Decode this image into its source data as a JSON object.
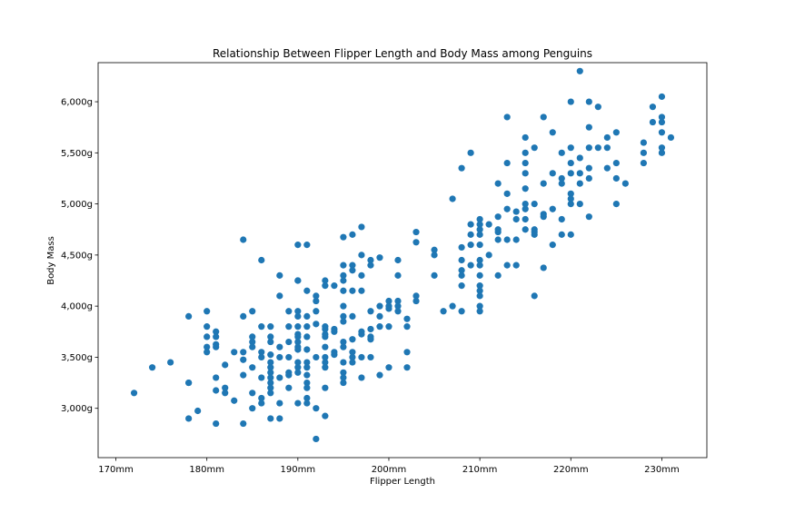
{
  "chart_data": {
    "type": "scatter",
    "title": "Relationship Between Flipper Length and Body Mass among Penguins",
    "xlabel": "Flipper Length",
    "ylabel": "Body Mass",
    "xlim": [
      168.05,
      234.95
    ],
    "ylim": [
      2517.5,
      6382.5
    ],
    "x_ticks": [
      170,
      180,
      190,
      200,
      210,
      220,
      230
    ],
    "x_tick_labels": [
      "170mm",
      "180mm",
      "190mm",
      "200mm",
      "210mm",
      "220mm",
      "230mm"
    ],
    "y_ticks": [
      3000,
      3500,
      4000,
      4500,
      5000,
      5500,
      6000
    ],
    "y_tick_labels": [
      "3,000g",
      "3,500g",
      "4,000g",
      "4,500g",
      "5,000g",
      "5,500g",
      "6,000g"
    ],
    "grid": false,
    "marker_color": "#1f77b4",
    "points": [
      [
        172,
        3150
      ],
      [
        174,
        3400
      ],
      [
        176,
        3450
      ],
      [
        178,
        3900
      ],
      [
        178,
        3250
      ],
      [
        178,
        3250
      ],
      [
        178,
        2900
      ],
      [
        179,
        2975
      ],
      [
        180,
        3950
      ],
      [
        180,
        3800
      ],
      [
        180,
        3700
      ],
      [
        180,
        3600
      ],
      [
        180,
        3550
      ],
      [
        181,
        3750
      ],
      [
        181,
        3700
      ],
      [
        181,
        3625
      ],
      [
        181,
        3600
      ],
      [
        181,
        3300
      ],
      [
        181,
        3175
      ],
      [
        181,
        2850
      ],
      [
        182,
        3425
      ],
      [
        182,
        3200
      ],
      [
        182,
        3150
      ],
      [
        183,
        3550
      ],
      [
        183,
        3075
      ],
      [
        184,
        4650
      ],
      [
        184,
        3900
      ],
      [
        184,
        3550
      ],
      [
        184,
        3475
      ],
      [
        184,
        3325
      ],
      [
        184,
        2850
      ],
      [
        185,
        3950
      ],
      [
        185,
        3700
      ],
      [
        185,
        3650
      ],
      [
        185,
        3600
      ],
      [
        185,
        3400
      ],
      [
        185,
        3150
      ],
      [
        185,
        3000
      ],
      [
        186,
        4450
      ],
      [
        186,
        3800
      ],
      [
        186,
        3550
      ],
      [
        186,
        3500
      ],
      [
        186,
        3300
      ],
      [
        186,
        3100
      ],
      [
        186,
        3050
      ],
      [
        187,
        3800
      ],
      [
        187,
        3700
      ],
      [
        187,
        3650
      ],
      [
        187,
        3525
      ],
      [
        187,
        3450
      ],
      [
        187,
        3400
      ],
      [
        187,
        3350
      ],
      [
        187,
        3300
      ],
      [
        187,
        3250
      ],
      [
        187,
        3200
      ],
      [
        187,
        3150
      ],
      [
        187,
        2900
      ],
      [
        188,
        4300
      ],
      [
        188,
        4100
      ],
      [
        188,
        3600
      ],
      [
        188,
        3500
      ],
      [
        188,
        3300
      ],
      [
        188,
        3050
      ],
      [
        188,
        2900
      ],
      [
        189,
        3950
      ],
      [
        189,
        3800
      ],
      [
        189,
        3650
      ],
      [
        189,
        3500
      ],
      [
        189,
        3350
      ],
      [
        189,
        3325
      ],
      [
        189,
        3200
      ],
      [
        190,
        4600
      ],
      [
        190,
        4250
      ],
      [
        190,
        4250
      ],
      [
        190,
        3950
      ],
      [
        190,
        3900
      ],
      [
        190,
        3800
      ],
      [
        190,
        3725
      ],
      [
        190,
        3700
      ],
      [
        190,
        3650
      ],
      [
        190,
        3600
      ],
      [
        190,
        3575
      ],
      [
        190,
        3450
      ],
      [
        190,
        3400
      ],
      [
        190,
        3350
      ],
      [
        190,
        3050
      ],
      [
        191,
        4600
      ],
      [
        191,
        4150
      ],
      [
        191,
        3900
      ],
      [
        191,
        3800
      ],
      [
        191,
        3700
      ],
      [
        191,
        3575
      ],
      [
        191,
        3450
      ],
      [
        191,
        3400
      ],
      [
        191,
        3325
      ],
      [
        191,
        3250
      ],
      [
        191,
        3200
      ],
      [
        191,
        3100
      ],
      [
        191,
        3050
      ],
      [
        192,
        4100
      ],
      [
        192,
        4050
      ],
      [
        192,
        3950
      ],
      [
        192,
        3825
      ],
      [
        192,
        3500
      ],
      [
        192,
        3000
      ],
      [
        192,
        2700
      ],
      [
        193,
        4250
      ],
      [
        193,
        4200
      ],
      [
        193,
        3800
      ],
      [
        193,
        3775
      ],
      [
        193,
        3725
      ],
      [
        193,
        3700
      ],
      [
        193,
        3600
      ],
      [
        193,
        3500
      ],
      [
        193,
        3450
      ],
      [
        193,
        3400
      ],
      [
        193,
        3200
      ],
      [
        193,
        2925
      ],
      [
        194,
        4200
      ],
      [
        194,
        3775
      ],
      [
        194,
        3750
      ],
      [
        194,
        3550
      ],
      [
        194,
        3525
      ],
      [
        195,
        4675
      ],
      [
        195,
        4400
      ],
      [
        195,
        4300
      ],
      [
        195,
        4250
      ],
      [
        195,
        4150
      ],
      [
        195,
        4000
      ],
      [
        195,
        3900
      ],
      [
        195,
        3850
      ],
      [
        195,
        3650
      ],
      [
        195,
        3600
      ],
      [
        195,
        3450
      ],
      [
        195,
        3350
      ],
      [
        195,
        3300
      ],
      [
        195,
        3250
      ],
      [
        196,
        4700
      ],
      [
        196,
        4400
      ],
      [
        196,
        4350
      ],
      [
        196,
        4150
      ],
      [
        196,
        3900
      ],
      [
        196,
        3675
      ],
      [
        196,
        3550
      ],
      [
        196,
        3500
      ],
      [
        196,
        3450
      ],
      [
        197,
        4775
      ],
      [
        197,
        4500
      ],
      [
        197,
        4300
      ],
      [
        197,
        4150
      ],
      [
        197,
        3750
      ],
      [
        197,
        3725
      ],
      [
        197,
        3500
      ],
      [
        197,
        3300
      ],
      [
        198,
        4450
      ],
      [
        198,
        4400
      ],
      [
        198,
        3950
      ],
      [
        198,
        3775
      ],
      [
        198,
        3700
      ],
      [
        198,
        3675
      ],
      [
        198,
        3500
      ],
      [
        199,
        4475
      ],
      [
        199,
        4000
      ],
      [
        199,
        3900
      ],
      [
        199,
        3800
      ],
      [
        199,
        3325
      ],
      [
        200,
        4050
      ],
      [
        200,
        4000
      ],
      [
        200,
        3975
      ],
      [
        200,
        3800
      ],
      [
        200,
        3400
      ],
      [
        201,
        4450
      ],
      [
        201,
        4300
      ],
      [
        201,
        4050
      ],
      [
        201,
        4000
      ],
      [
        201,
        3950
      ],
      [
        202,
        3875
      ],
      [
        202,
        3800
      ],
      [
        202,
        3550
      ],
      [
        202,
        3400
      ],
      [
        203,
        4725
      ],
      [
        203,
        4625
      ],
      [
        203,
        4100
      ],
      [
        203,
        4050
      ],
      [
        205,
        4550
      ],
      [
        205,
        4500
      ],
      [
        205,
        4300
      ],
      [
        206,
        3950
      ],
      [
        207,
        5050
      ],
      [
        207,
        4000
      ],
      [
        208,
        5350
      ],
      [
        208,
        4575
      ],
      [
        208,
        4450
      ],
      [
        208,
        4350
      ],
      [
        208,
        4300
      ],
      [
        208,
        4200
      ],
      [
        208,
        3950
      ],
      [
        209,
        5500
      ],
      [
        209,
        4800
      ],
      [
        209,
        4700
      ],
      [
        209,
        4600
      ],
      [
        209,
        4400
      ],
      [
        210,
        4850
      ],
      [
        210,
        4800
      ],
      [
        210,
        4750
      ],
      [
        210,
        4700
      ],
      [
        210,
        4600
      ],
      [
        210,
        4450
      ],
      [
        210,
        4400
      ],
      [
        210,
        4300
      ],
      [
        210,
        4200
      ],
      [
        210,
        4150
      ],
      [
        210,
        4100
      ],
      [
        210,
        4000
      ],
      [
        210,
        3950
      ],
      [
        211,
        4800
      ],
      [
        211,
        4500
      ],
      [
        212,
        5200
      ],
      [
        212,
        4875
      ],
      [
        212,
        4750
      ],
      [
        212,
        4725
      ],
      [
        212,
        4650
      ],
      [
        212,
        4300
      ],
      [
        213,
        5850
      ],
      [
        213,
        5400
      ],
      [
        213,
        5100
      ],
      [
        213,
        4950
      ],
      [
        213,
        4650
      ],
      [
        213,
        4400
      ],
      [
        214,
        4925
      ],
      [
        214,
        4850
      ],
      [
        214,
        4650
      ],
      [
        214,
        4400
      ],
      [
        215,
        5650
      ],
      [
        215,
        5500
      ],
      [
        215,
        5400
      ],
      [
        215,
        5300
      ],
      [
        215,
        5150
      ],
      [
        215,
        5000
      ],
      [
        215,
        4950
      ],
      [
        215,
        4850
      ],
      [
        215,
        4750
      ],
      [
        216,
        5550
      ],
      [
        216,
        5000
      ],
      [
        216,
        4750
      ],
      [
        216,
        4725
      ],
      [
        216,
        4700
      ],
      [
        216,
        4100
      ],
      [
        217,
        5850
      ],
      [
        217,
        5200
      ],
      [
        217,
        4900
      ],
      [
        217,
        4875
      ],
      [
        217,
        4375
      ],
      [
        218,
        5700
      ],
      [
        218,
        5300
      ],
      [
        218,
        4950
      ],
      [
        218,
        4600
      ],
      [
        219,
        5500
      ],
      [
        219,
        5250
      ],
      [
        219,
        5200
      ],
      [
        219,
        4850
      ],
      [
        219,
        4700
      ],
      [
        220,
        6000
      ],
      [
        220,
        5550
      ],
      [
        220,
        5400
      ],
      [
        220,
        5300
      ],
      [
        220,
        5100
      ],
      [
        220,
        5050
      ],
      [
        220,
        5000
      ],
      [
        220,
        4700
      ],
      [
        221,
        6300
      ],
      [
        221,
        5450
      ],
      [
        221,
        5300
      ],
      [
        221,
        5200
      ],
      [
        221,
        5000
      ],
      [
        222,
        6000
      ],
      [
        222,
        5750
      ],
      [
        222,
        5550
      ],
      [
        222,
        5350
      ],
      [
        222,
        5250
      ],
      [
        222,
        4875
      ],
      [
        223,
        5950
      ],
      [
        223,
        5550
      ],
      [
        224,
        5650
      ],
      [
        224,
        5550
      ],
      [
        224,
        5350
      ],
      [
        225,
        5700
      ],
      [
        225,
        5400
      ],
      [
        225,
        5250
      ],
      [
        225,
        5000
      ],
      [
        226,
        5200
      ],
      [
        228,
        5600
      ],
      [
        228,
        5500
      ],
      [
        228,
        5400
      ],
      [
        229,
        5950
      ],
      [
        229,
        5800
      ],
      [
        230,
        6050
      ],
      [
        230,
        5850
      ],
      [
        230,
        5800
      ],
      [
        230,
        5700
      ],
      [
        230,
        5550
      ],
      [
        230,
        5500
      ],
      [
        231,
        5650
      ]
    ]
  }
}
